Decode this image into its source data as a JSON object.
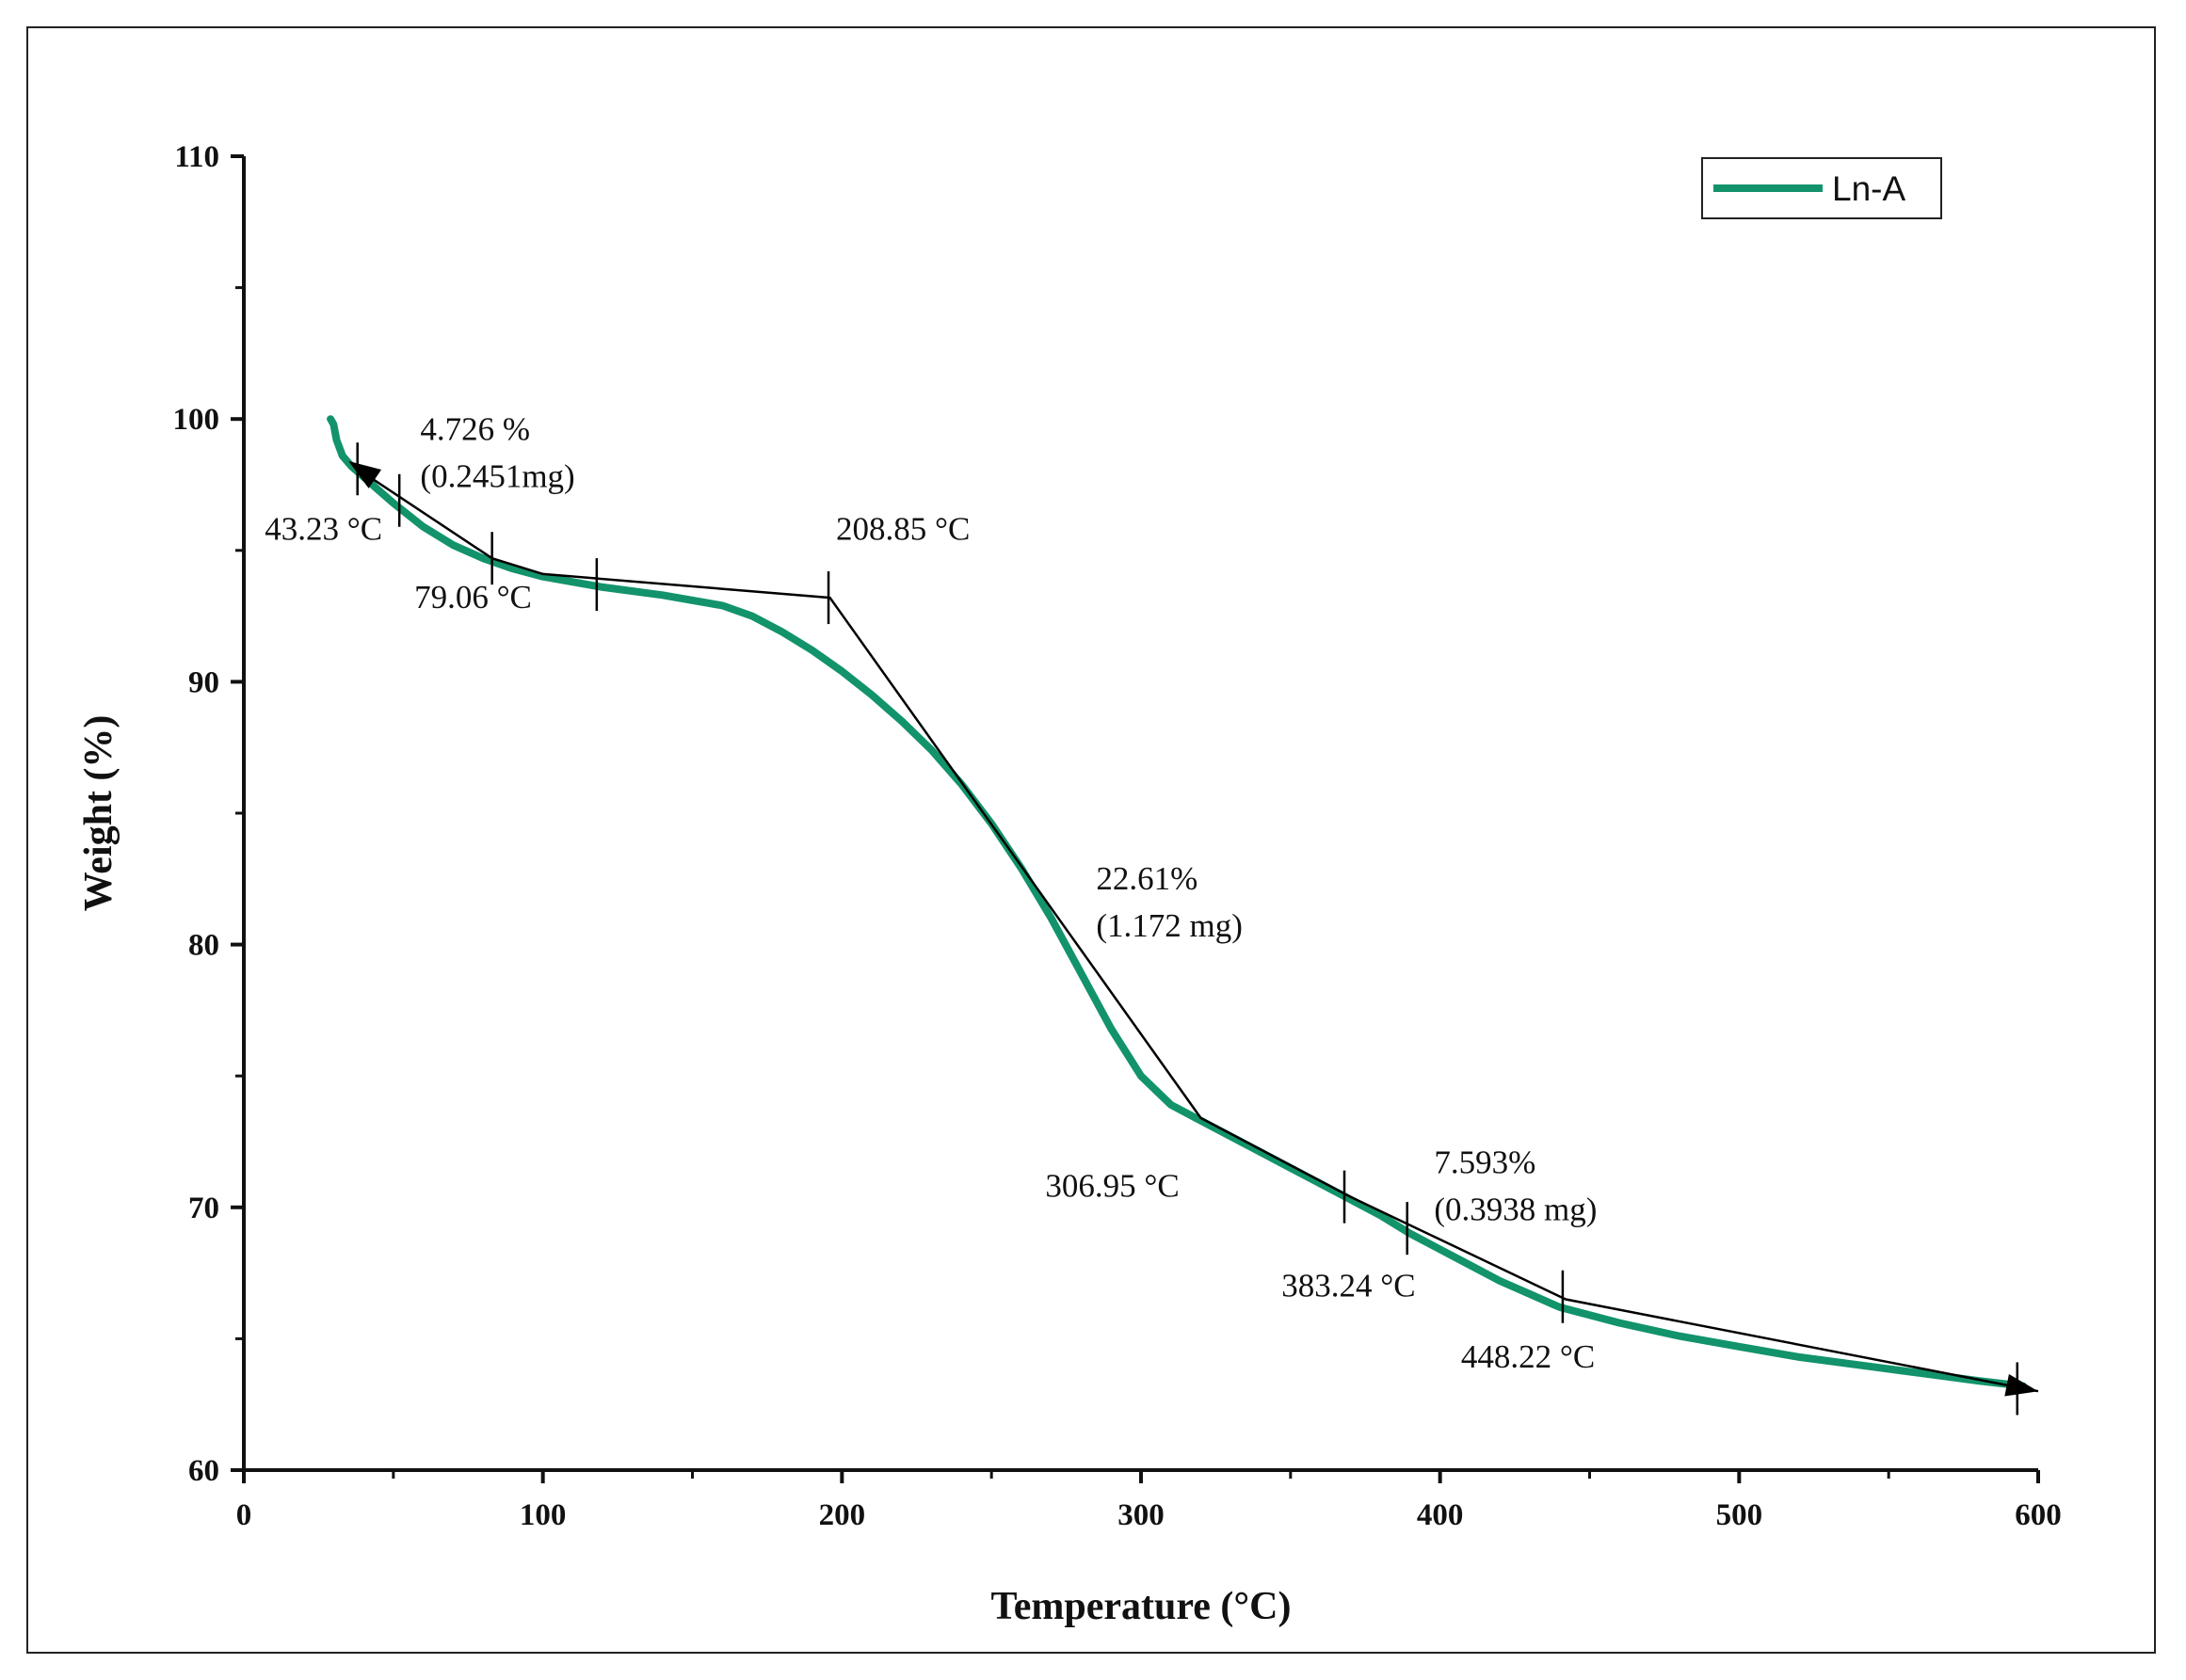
{
  "chart_data": {
    "type": "line",
    "xlabel": "Temperature (°C)",
    "ylabel": "Weight (%)",
    "xlim": [
      0,
      600
    ],
    "ylim": [
      60,
      110
    ],
    "xticks": [
      0,
      100,
      200,
      300,
      400,
      500,
      600
    ],
    "yticks": [
      60,
      70,
      80,
      90,
      100,
      110
    ],
    "x_tick_labels": [
      "0",
      "100",
      "200",
      "300",
      "400",
      "500",
      "600"
    ],
    "y_tick_labels": [
      "60",
      "70",
      "80",
      "90",
      "100",
      "110"
    ],
    "colors": {
      "series": "#12936b",
      "tangent": "#000000",
      "axis": "#111111"
    },
    "series": [
      {
        "name": "Ln-A",
        "x": [
          29,
          30,
          31,
          33,
          36,
          40,
          45,
          50,
          60,
          70,
          80,
          90,
          100,
          110,
          120,
          140,
          160,
          170,
          180,
          190,
          200,
          210,
          220,
          230,
          240,
          250,
          260,
          270,
          280,
          290,
          300,
          310,
          320,
          330,
          340,
          350,
          360,
          370,
          380,
          390,
          400,
          410,
          420,
          430,
          440,
          450,
          460,
          480,
          500,
          520,
          540,
          560,
          580,
          595
        ],
        "y": [
          100.0,
          99.8,
          99.2,
          98.6,
          98.2,
          97.8,
          97.3,
          96.8,
          95.9,
          95.2,
          94.7,
          94.3,
          94.0,
          93.8,
          93.6,
          93.3,
          92.9,
          92.5,
          91.9,
          91.2,
          90.4,
          89.5,
          88.5,
          87.4,
          86.1,
          84.6,
          82.9,
          81.0,
          78.9,
          76.8,
          75.0,
          73.9,
          73.3,
          72.7,
          72.1,
          71.5,
          70.9,
          70.3,
          69.7,
          69.0,
          68.4,
          67.8,
          67.2,
          66.7,
          66.2,
          65.9,
          65.6,
          65.1,
          64.7,
          64.3,
          64.0,
          63.7,
          63.4,
          63.2
        ]
      }
    ],
    "legend": {
      "position": "top-right",
      "entries": [
        "Ln-A"
      ]
    },
    "tangent_lines": [
      {
        "x": [
          38,
          83,
          100,
          196,
          320,
          370,
          442,
          600
        ],
        "y": [
          98.1,
          94.7,
          94.1,
          93.2,
          73.4,
          70.4,
          66.5,
          63.0
        ]
      }
    ],
    "step_markers": [
      {
        "x": 38,
        "y": 98.1
      },
      {
        "x": 52,
        "y": 96.9
      },
      {
        "x": 83,
        "y": 94.7
      },
      {
        "x": 118,
        "y": 93.7
      },
      {
        "x": 195.5,
        "y": 93.2
      },
      {
        "x": 368,
        "y": 70.4
      },
      {
        "x": 389,
        "y": 69.2
      },
      {
        "x": 441,
        "y": 66.6
      },
      {
        "x": 593,
        "y": 63.1
      }
    ],
    "annotations": [
      {
        "id": "step1-loss",
        "lines": [
          "4.726 %",
          "(0.2451mg)"
        ],
        "x": 59,
        "y": 99.2
      },
      {
        "id": "onset-1",
        "lines": [
          "43.23 °C"
        ],
        "x": 7,
        "y": 95.4
      },
      {
        "id": "end-1",
        "lines": [
          "79.06 °C"
        ],
        "x": 57,
        "y": 92.8
      },
      {
        "id": "onset-2",
        "lines": [
          "208.85 °C"
        ],
        "x": 198,
        "y": 95.4
      },
      {
        "id": "step2-loss",
        "lines": [
          "22.61%",
          "(1.172 mg)"
        ],
        "x": 285,
        "y": 82.1
      },
      {
        "id": "end-2",
        "lines": [
          "306.95 °C"
        ],
        "x": 268,
        "y": 70.4
      },
      {
        "id": "step3-loss",
        "lines": [
          "7.593%",
          "(0.3938 mg)"
        ],
        "x": 398,
        "y": 71.3
      },
      {
        "id": "onset-3",
        "lines": [
          "383.24 °C"
        ],
        "x": 347,
        "y": 66.6
      },
      {
        "id": "end-3",
        "lines": [
          "448.22 °C"
        ],
        "x": 407,
        "y": 63.9
      }
    ]
  }
}
